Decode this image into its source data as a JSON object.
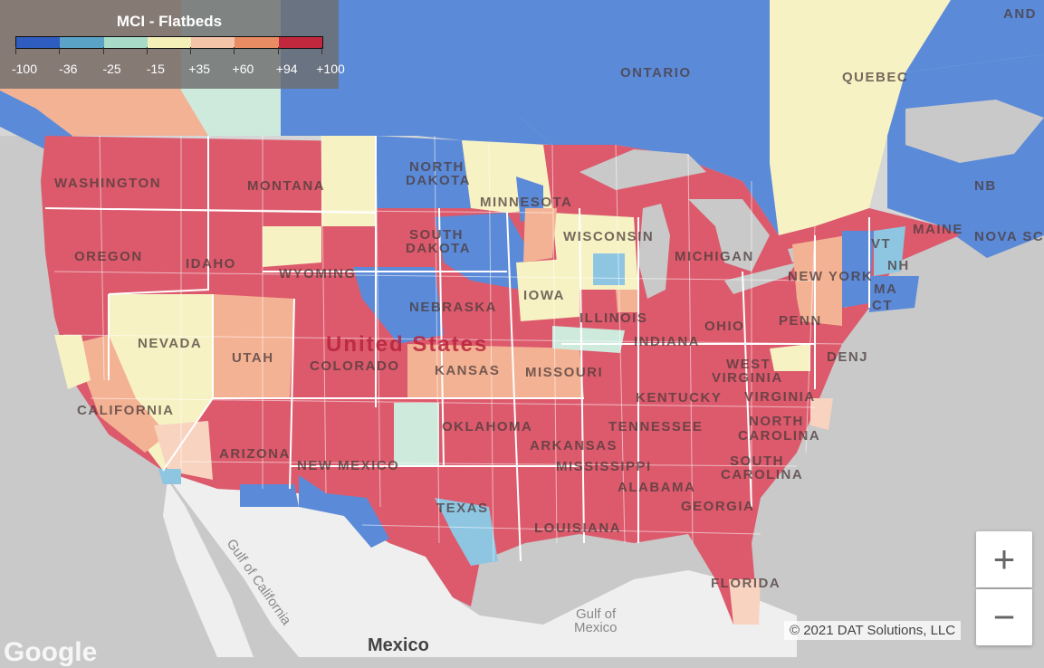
{
  "legend": {
    "title": "MCI - Flatbeds",
    "colors": [
      "#2e5cbf",
      "#5aa3c7",
      "#a8dcc9",
      "#f5efb8",
      "#f4c4a8",
      "#e98b63",
      "#c1273d"
    ],
    "ticks": [
      "-100",
      "-36",
      "-25",
      "-15",
      "+35",
      "+60",
      "+94",
      "+100"
    ]
  },
  "map": {
    "country_label": "United States",
    "neighbor_label": "Mexico",
    "place_labels": [
      "WASHINGTON",
      "OREGON",
      "IDAHO",
      "MONTANA",
      "WYOMING",
      "NEVADA",
      "UTAH",
      "CALIFORNIA",
      "ARIZONA",
      "COLORADO",
      "NEW MEXICO",
      "NORTH DAKOTA",
      "SOUTH DAKOTA",
      "NEBRASKA",
      "KANSAS",
      "OKLAHOMA",
      "TEXAS",
      "MINNESOTA",
      "IOWA",
      "MISSOURI",
      "ARKANSAS",
      "LOUISIANA",
      "WISCONSIN",
      "ILLINOIS",
      "MICHIGAN",
      "INDIANA",
      "OHIO",
      "KENTUCKY",
      "TENNESSEE",
      "MISSISSIPPI",
      "ALABAMA",
      "GEORGIA",
      "FLORIDA",
      "SOUTH CAROLINA",
      "NORTH CAROLINA",
      "VIRGINIA",
      "WEST VIRGINIA",
      "PENN",
      "NEW YORK",
      "MAINE",
      "VT",
      "NH",
      "MA",
      "CT",
      "DENJ",
      "ONTARIO",
      "QUEBEC",
      "NB",
      "NOVA SC",
      "AND"
    ],
    "water_labels": [
      "Gulf of California",
      "Gulf of Mexico"
    ],
    "colors": {
      "water": "#c9c9c9",
      "land": "#efefef",
      "blue": "#5b8ad8",
      "red": "#dc5a6c",
      "yellow": "#f7f2c4",
      "peach": "#f4b294",
      "light_peach": "#f8d3c0",
      "mint": "#cdeadd",
      "light_blue": "#8ec6e2"
    }
  },
  "controls": {
    "zoom_in": "+",
    "zoom_out": "−"
  },
  "attribution": "© 2021 DAT Solutions, LLC",
  "logo": "Google"
}
